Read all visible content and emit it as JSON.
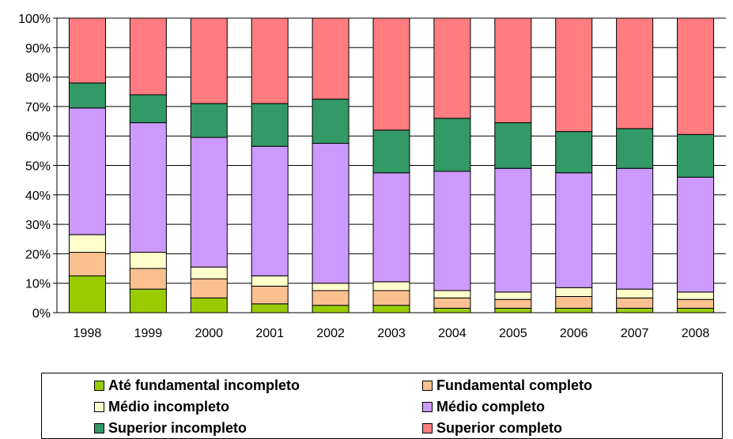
{
  "chart_data": {
    "type": "bar",
    "stacked": true,
    "normalized": true,
    "title": "",
    "xlabel": "",
    "ylabel": "",
    "ylim": [
      0,
      100
    ],
    "yticks": [
      "0%",
      "10%",
      "20%",
      "30%",
      "40%",
      "50%",
      "60%",
      "70%",
      "80%",
      "90%",
      "100%"
    ],
    "grid": "horizontal",
    "legend_position": "bottom",
    "categories": [
      "1998",
      "1999",
      "2000",
      "2001",
      "2002",
      "2003",
      "2004",
      "2005",
      "2006",
      "2007",
      "2008"
    ],
    "series": [
      {
        "name": "Até fundamental incompleto",
        "color": "#99cc00",
        "values": [
          12.5,
          8,
          5,
          3,
          2.5,
          2.5,
          1.5,
          1.5,
          1.5,
          1.5,
          1.5
        ]
      },
      {
        "name": "Fundamental completo",
        "color": "#fac090",
        "values": [
          8,
          7,
          6.5,
          6,
          5,
          5,
          3.5,
          3,
          4,
          3.5,
          3
        ]
      },
      {
        "name": "Médio incompleto",
        "color": "#ffffcc",
        "values": [
          6,
          5.5,
          4,
          3.5,
          2.5,
          3,
          2.5,
          2.5,
          3,
          3,
          2.5
        ]
      },
      {
        "name": "Médio completo",
        "color": "#cc99ff",
        "values": [
          43,
          44,
          44,
          44,
          47.5,
          37,
          40.5,
          42,
          39,
          41,
          39
        ]
      },
      {
        "name": "Superior incompleto",
        "color": "#339966",
        "values": [
          8.5,
          9.5,
          11.5,
          14.5,
          15,
          14.5,
          18,
          15.5,
          14,
          13.5,
          14.5
        ]
      },
      {
        "name": "Superior completo",
        "color": "#ff7c80",
        "values": [
          22,
          26,
          29,
          29,
          27.5,
          38,
          34,
          35.5,
          38.5,
          37.5,
          39.5
        ]
      }
    ]
  },
  "legend": {
    "items": [
      {
        "label": "Até fundamental incompleto",
        "color": "#99cc00"
      },
      {
        "label": "Fundamental completo",
        "color": "#fac090"
      },
      {
        "label": "Médio incompleto",
        "color": "#ffffcc"
      },
      {
        "label": "Médio completo",
        "color": "#cc99ff"
      },
      {
        "label": "Superior incompleto",
        "color": "#339966"
      },
      {
        "label": "Superior completo",
        "color": "#ff7c80"
      }
    ]
  }
}
